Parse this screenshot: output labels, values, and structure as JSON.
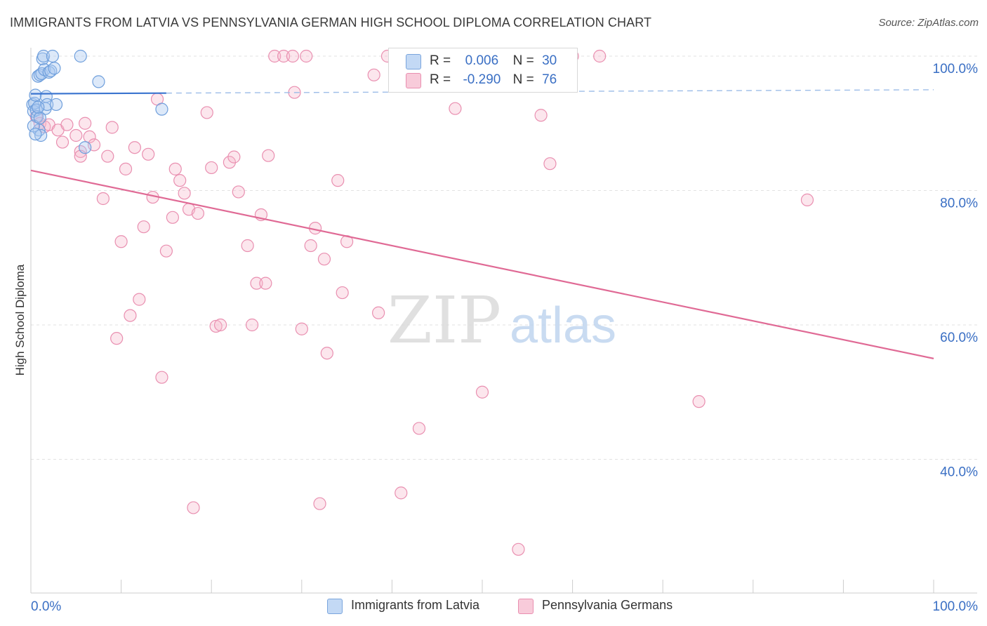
{
  "title": "IMMIGRANTS FROM LATVIA VS PENNSYLVANIA GERMAN HIGH SCHOOL DIPLOMA CORRELATION CHART",
  "source": "Source: ZipAtlas.com",
  "legend": {
    "row1": {
      "r_label": "R =",
      "r_value": "0.006",
      "n_label": "N =",
      "n_value": "30"
    },
    "row2": {
      "r_label": "R =",
      "r_value": "-0.290",
      "n_label": "N =",
      "n_value": "76"
    }
  },
  "bottom_legend": {
    "series1": "Immigrants from Latvia",
    "series2": "Pennsylvania Germans"
  },
  "watermark": {
    "zip": "ZIP",
    "atlas": "atlas"
  },
  "colors": {
    "blue": "#5b8fd6",
    "blue_fill": "#a9c8f0",
    "pink": "#e06a95",
    "pink_fill": "#f5b6cb",
    "axis_label": "#3a6fc4"
  },
  "chart_data": {
    "type": "scatter",
    "title": "IMMIGRANTS FROM LATVIA VS PENNSYLVANIA GERMAN HIGH SCHOOL DIPLOMA CORRELATION CHART",
    "xlabel": "",
    "ylabel": "High School Diploma",
    "xlim": [
      0,
      100
    ],
    "ylim": [
      20,
      103
    ],
    "x_tick_labels": [
      "0.0%",
      "100.0%"
    ],
    "y_tick_labels": [
      "100.0%",
      "80.0%",
      "60.0%",
      "40.0%"
    ],
    "y_ticks": [
      100,
      80,
      60,
      40
    ],
    "series": [
      {
        "name": "Immigrants from Latvia",
        "R": 0.006,
        "N": 30,
        "trend": {
          "x": [
            0,
            15
          ],
          "y": [
            94.4,
            94.5
          ],
          "dashed_to": [
            100,
            95.0
          ]
        },
        "points": [
          [
            0.2,
            92.8
          ],
          [
            0.3,
            91.8
          ],
          [
            0.4,
            93.0
          ],
          [
            0.5,
            94.2
          ],
          [
            0.6,
            92.0
          ],
          [
            0.7,
            91.0
          ],
          [
            0.8,
            97.0
          ],
          [
            0.9,
            89.0
          ],
          [
            1.0,
            97.2
          ],
          [
            1.1,
            88.2
          ],
          [
            1.2,
            97.4
          ],
          [
            1.3,
            99.6
          ],
          [
            1.4,
            100.0
          ],
          [
            1.5,
            98.0
          ],
          [
            1.6,
            92.2
          ],
          [
            1.7,
            94.0
          ],
          [
            1.8,
            92.8
          ],
          [
            2.0,
            97.6
          ],
          [
            2.2,
            97.8
          ],
          [
            2.4,
            100.0
          ],
          [
            2.6,
            98.2
          ],
          [
            2.8,
            92.8
          ],
          [
            5.5,
            100.0
          ],
          [
            7.5,
            96.2
          ],
          [
            6.0,
            86.4
          ],
          [
            14.5,
            92.1
          ],
          [
            0.3,
            89.6
          ],
          [
            0.5,
            88.4
          ],
          [
            1.0,
            90.8
          ],
          [
            0.8,
            92.4
          ]
        ]
      },
      {
        "name": "Pennsylvania Germans",
        "R": -0.29,
        "N": 76,
        "trend": {
          "x": [
            0,
            100
          ],
          "y": [
            83.0,
            55.0
          ]
        },
        "points": [
          [
            0.6,
            91.0
          ],
          [
            1.0,
            90.0
          ],
          [
            1.5,
            89.5
          ],
          [
            2.0,
            89.8
          ],
          [
            3.0,
            89.0
          ],
          [
            3.5,
            87.2
          ],
          [
            4.0,
            89.8
          ],
          [
            5.0,
            88.2
          ],
          [
            5.5,
            85.8
          ],
          [
            6.5,
            88.0
          ],
          [
            7.0,
            86.8
          ],
          [
            8.5,
            85.1
          ],
          [
            9.0,
            89.4
          ],
          [
            6.0,
            90.0
          ],
          [
            5.5,
            85.1
          ],
          [
            8.0,
            78.8
          ],
          [
            9.5,
            58.0
          ],
          [
            10.0,
            72.4
          ],
          [
            10.5,
            83.2
          ],
          [
            11.0,
            61.4
          ],
          [
            11.5,
            86.4
          ],
          [
            12.0,
            63.8
          ],
          [
            12.5,
            74.6
          ],
          [
            13.0,
            85.4
          ],
          [
            13.5,
            79.0
          ],
          [
            14.0,
            93.6
          ],
          [
            14.5,
            52.2
          ],
          [
            15.0,
            71.0
          ],
          [
            15.7,
            76.0
          ],
          [
            16.0,
            83.2
          ],
          [
            16.5,
            81.5
          ],
          [
            17.0,
            79.6
          ],
          [
            17.5,
            77.2
          ],
          [
            18.0,
            32.8
          ],
          [
            18.5,
            76.6
          ],
          [
            19.5,
            91.6
          ],
          [
            20.0,
            83.4
          ],
          [
            20.5,
            59.8
          ],
          [
            21.0,
            60.0
          ],
          [
            22.0,
            84.2
          ],
          [
            22.5,
            85.0
          ],
          [
            23.0,
            79.8
          ],
          [
            24.0,
            71.8
          ],
          [
            24.5,
            60.0
          ],
          [
            25.0,
            66.2
          ],
          [
            25.5,
            76.4
          ],
          [
            26.0,
            66.2
          ],
          [
            26.3,
            85.2
          ],
          [
            27.0,
            100.0
          ],
          [
            28.0,
            100.0
          ],
          [
            29.0,
            100.0
          ],
          [
            29.2,
            94.6
          ],
          [
            30.0,
            59.4
          ],
          [
            30.5,
            100.0
          ],
          [
            31.0,
            71.8
          ],
          [
            31.5,
            74.4
          ],
          [
            32.0,
            33.4
          ],
          [
            32.5,
            69.8
          ],
          [
            32.8,
            55.8
          ],
          [
            34.0,
            81.5
          ],
          [
            34.5,
            64.8
          ],
          [
            35.0,
            72.4
          ],
          [
            38.0,
            97.2
          ],
          [
            38.5,
            61.8
          ],
          [
            43.0,
            44.6
          ],
          [
            41.0,
            35.0
          ],
          [
            47.0,
            92.2
          ],
          [
            50.0,
            50.0
          ],
          [
            54.0,
            26.6
          ],
          [
            56.5,
            91.2
          ],
          [
            57.5,
            84.0
          ],
          [
            63.0,
            100.0
          ],
          [
            74.0,
            48.6
          ],
          [
            86.0,
            78.6
          ],
          [
            39.5,
            100.0
          ],
          [
            60.0,
            100.0
          ]
        ]
      }
    ]
  }
}
